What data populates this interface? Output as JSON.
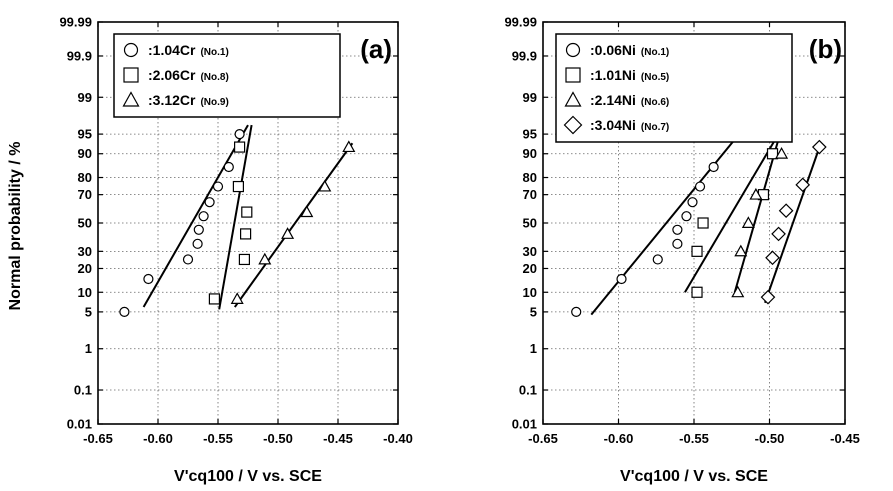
{
  "figure": {
    "ylabel": "Normal probability / %"
  },
  "chart_data": [
    {
      "type": "scatter",
      "panel_label": "(a)",
      "xlabel": "V'cq100 / V vs. SCE",
      "ylabel": "Normal probability / %",
      "xlim": [
        -0.65,
        -0.4
      ],
      "ylim": [
        0.01,
        99.99
      ],
      "y_scale": "normal-probability",
      "x_ticks": [
        -0.65,
        -0.6,
        -0.55,
        -0.5,
        -0.45,
        -0.4
      ],
      "x_tick_labels": [
        "-0.65",
        "-0.60",
        "-0.55",
        "-0.50",
        "-0.45",
        "-0.40"
      ],
      "y_ticks": [
        0.01,
        0.1,
        1,
        5,
        10,
        20,
        30,
        50,
        70,
        80,
        90,
        95,
        99,
        99.9,
        99.99
      ],
      "y_tick_labels": [
        "0.01",
        "0.1",
        "1",
        "5",
        "10",
        "20",
        "30",
        "50",
        "70",
        "80",
        "90",
        "95",
        "99",
        "99.9",
        "99.99"
      ],
      "grid": true,
      "legend_position": "top-left",
      "series": [
        {
          "label": ":1.04Cr",
          "tag": "(No.1)",
          "marker": "circle",
          "marker_size": 9,
          "points": [
            [
              -0.628,
              5
            ],
            [
              -0.608,
              15
            ],
            [
              -0.575,
              25
            ],
            [
              -0.567,
              35
            ],
            [
              -0.566,
              45
            ],
            [
              -0.562,
              55
            ],
            [
              -0.557,
              65
            ],
            [
              -0.55,
              75
            ],
            [
              -0.541,
              85
            ],
            [
              -0.532,
              95
            ]
          ],
          "fit": [
            [
              -0.612,
              6
            ],
            [
              -0.525,
              96.5
            ]
          ]
        },
        {
          "label": ":2.06Cr",
          "tag": "(No.8)",
          "marker": "square",
          "marker_size": 10,
          "points": [
            [
              -0.553,
              8
            ],
            [
              -0.528,
              25
            ],
            [
              -0.527,
              42
            ],
            [
              -0.526,
              58
            ],
            [
              -0.533,
              75
            ],
            [
              -0.532,
              92
            ]
          ],
          "fit": [
            [
              -0.549,
              5.5
            ],
            [
              -0.522,
              96.5
            ]
          ]
        },
        {
          "label": ":3.12Cr",
          "tag": "(No.9)",
          "marker": "triangle",
          "marker_size": 11,
          "points": [
            [
              -0.534,
              8
            ],
            [
              -0.511,
              25
            ],
            [
              -0.492,
              42
            ],
            [
              -0.476,
              58
            ],
            [
              -0.461,
              75
            ],
            [
              -0.441,
              92
            ]
          ],
          "fit": [
            [
              -0.536,
              6
            ],
            [
              -0.438,
              93
            ]
          ]
        }
      ]
    },
    {
      "type": "scatter",
      "panel_label": "(b)",
      "xlabel": "V'cq100 / V vs. SCE",
      "ylabel": "",
      "xlim": [
        -0.65,
        -0.45
      ],
      "ylim": [
        0.01,
        99.99
      ],
      "y_scale": "normal-probability",
      "x_ticks": [
        -0.65,
        -0.6,
        -0.55,
        -0.5,
        -0.45
      ],
      "x_tick_labels": [
        "-0.65",
        "-0.60",
        "-0.55",
        "-0.50",
        "-0.45"
      ],
      "y_ticks": [
        0.01,
        0.1,
        1,
        5,
        10,
        20,
        30,
        50,
        70,
        80,
        90,
        95,
        99,
        99.9,
        99.99
      ],
      "y_tick_labels": [
        "0.01",
        "0.1",
        "1",
        "5",
        "10",
        "20",
        "30",
        "50",
        "70",
        "80",
        "90",
        "95",
        "99",
        "99.9",
        "99.99"
      ],
      "grid": true,
      "legend_position": "top-left",
      "series": [
        {
          "label": ":0.06Ni",
          "tag": "(No.1)",
          "marker": "circle",
          "marker_size": 9,
          "points": [
            [
              -0.628,
              5
            ],
            [
              -0.598,
              15
            ],
            [
              -0.574,
              25
            ],
            [
              -0.561,
              35
            ],
            [
              -0.561,
              45
            ],
            [
              -0.555,
              55
            ],
            [
              -0.551,
              65
            ],
            [
              -0.546,
              75
            ],
            [
              -0.537,
              85
            ],
            [
              -0.521,
              95
            ]
          ],
          "fit": [
            [
              -0.618,
              4.5
            ],
            [
              -0.517,
              96
            ]
          ]
        },
        {
          "label": ":1.01Ni",
          "tag": "(No.5)",
          "marker": "square",
          "marker_size": 10,
          "points": [
            [
              -0.548,
              10
            ],
            [
              -0.548,
              30
            ],
            [
              -0.544,
              50
            ],
            [
              -0.504,
              70
            ],
            [
              -0.498,
              90
            ]
          ],
          "fit": [
            [
              -0.556,
              10
            ],
            [
              -0.496,
              94
            ]
          ]
        },
        {
          "label": ":2.14Ni",
          "tag": "(No.6)",
          "marker": "triangle",
          "marker_size": 11,
          "points": [
            [
              -0.521,
              10
            ],
            [
              -0.519,
              30
            ],
            [
              -0.514,
              50
            ],
            [
              -0.509,
              70
            ],
            [
              -0.492,
              90
            ]
          ],
          "fit": [
            [
              -0.523,
              10
            ],
            [
              -0.494,
              94
            ]
          ]
        },
        {
          "label": ":3.04Ni",
          "tag": "(No.7)",
          "marker": "diamond",
          "marker_size": 13,
          "points": [
            [
              -0.501,
              8.5
            ],
            [
              -0.498,
              26
            ],
            [
              -0.494,
              42
            ],
            [
              -0.489,
              59
            ],
            [
              -0.478,
              76
            ],
            [
              -0.467,
              92
            ]
          ],
          "fit": [
            [
              -0.503,
              7
            ],
            [
              -0.466,
              93
            ]
          ]
        }
      ]
    }
  ]
}
